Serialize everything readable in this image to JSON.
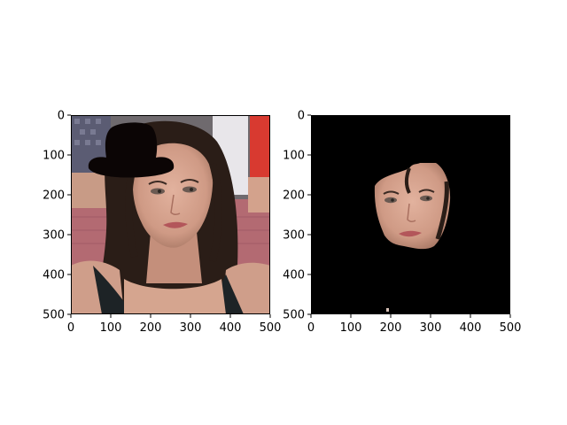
{
  "figure": {
    "background": "#ffffff",
    "axis_color": "#000000",
    "panels": [
      {
        "content": "photo of a woman with long dark hair; a black bowler hat drawn over the top-left of her head",
        "xlim": [
          0,
          500
        ],
        "ylim": [
          500,
          0
        ],
        "xticks": [
          "0",
          "100",
          "200",
          "300",
          "400",
          "500"
        ],
        "yticks": [
          "0",
          "100",
          "200",
          "300",
          "400",
          "500"
        ],
        "colors": {
          "hat": "#0b0505",
          "hair": "#2a1d17",
          "skin": "#d6a38e",
          "lips": "#b3565a",
          "backdrop": "#b36a72"
        }
      },
      {
        "content": "black mask image showing only the segmented face region",
        "xlim": [
          0,
          500
        ],
        "ylim": [
          500,
          0
        ],
        "xticks": [
          "0",
          "100",
          "200",
          "300",
          "400",
          "500"
        ],
        "yticks": [
          "0",
          "100",
          "200",
          "300",
          "400",
          "500"
        ],
        "colors": {
          "mask": "#000000",
          "skin": "#d6a38e"
        }
      }
    ]
  }
}
